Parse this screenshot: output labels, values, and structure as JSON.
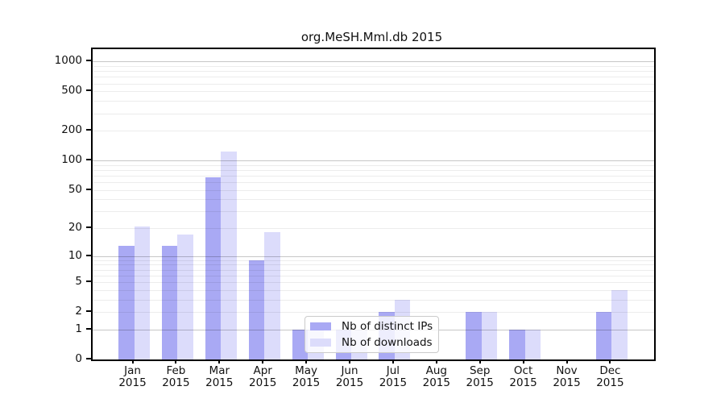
{
  "title": "org.MeSH.Mml.db 2015",
  "chart_data": {
    "type": "bar",
    "title": "org.MeSH.Mml.db 2015",
    "scale": "log10(1+value)",
    "categories": [
      "Jan",
      "Feb",
      "Mar",
      "Apr",
      "May",
      "Jun",
      "Jul",
      "Aug",
      "Sep",
      "Oct",
      "Nov",
      "Dec"
    ],
    "category_year": "2015",
    "series": [
      {
        "name": "Nb of distinct IPs",
        "color": "#a9a9f4",
        "values": [
          13,
          13,
          67,
          9,
          1,
          1,
          2,
          0,
          2,
          1,
          0,
          2
        ]
      },
      {
        "name": "Nb of downloads",
        "color": "#dcdcfb",
        "values": [
          21,
          17,
          123,
          18,
          1,
          1,
          3,
          0,
          2,
          1,
          0,
          4
        ]
      }
    ],
    "xlabel": "",
    "ylabel": "",
    "y_ticks": [
      0,
      1,
      2,
      5,
      10,
      20,
      50,
      100,
      200,
      500,
      1000
    ],
    "ylim": [
      0,
      1200
    ],
    "grid_major": [
      1,
      10,
      100,
      1000
    ],
    "grid_minor": [
      2,
      3,
      4,
      5,
      6,
      7,
      8,
      9,
      20,
      30,
      40,
      50,
      60,
      70,
      80,
      90,
      200,
      300,
      400,
      500,
      600,
      700,
      800,
      900
    ],
    "legend_position": "inside-bottom-center",
    "frame": "box"
  }
}
